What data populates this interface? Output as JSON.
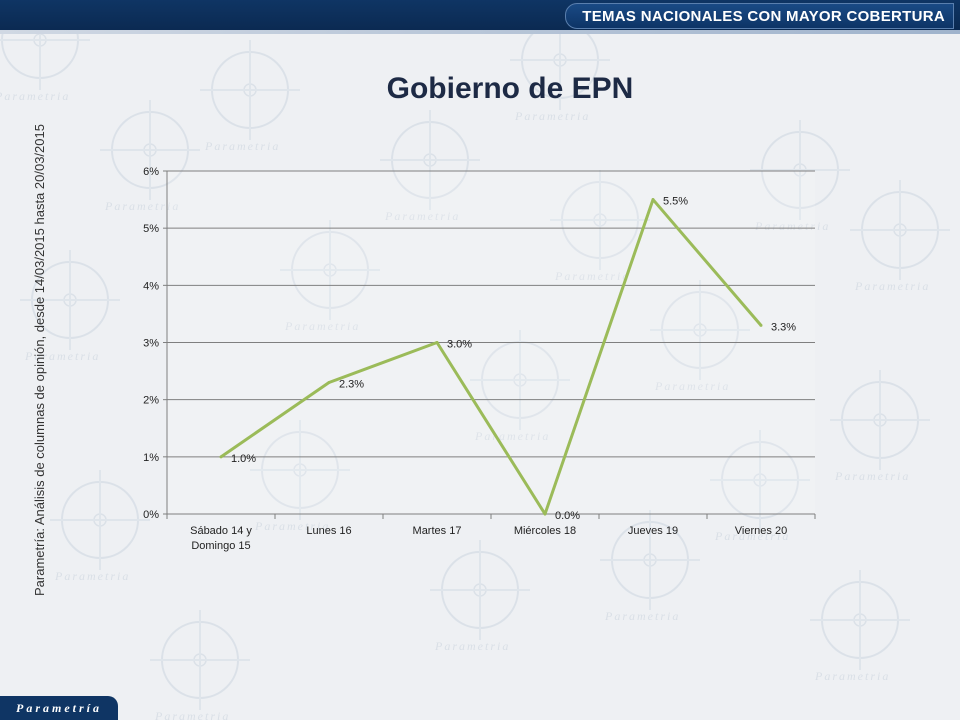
{
  "header": {
    "banner": "TEMAS NACIONALES CON MAYOR COBERTURA"
  },
  "caption": "Parametría: Análisis de columnas de opinión, desde 14/03/2015 hasta 20/03/2015",
  "logo": "Parametría",
  "watermark": "Parametria",
  "colors": {
    "line": "#9bbb59",
    "header": "#0f3564",
    "grid": "#7f7f7f"
  },
  "chart_data": {
    "type": "line",
    "title": "Gobierno de EPN",
    "categories": [
      "Sábado 14 y Domingo 15",
      "Lunes 16",
      "Martes 17",
      "Miércoles 18",
      "Jueves 19",
      "Viernes 20"
    ],
    "category_lines": [
      [
        "Sábado 14 y",
        "Domingo 15"
      ],
      [
        "Lunes 16"
      ],
      [
        "Martes 17"
      ],
      [
        "Miércoles 18"
      ],
      [
        "Jueves 19"
      ],
      [
        "Viernes 20"
      ]
    ],
    "values": [
      1.0,
      2.3,
      3.0,
      0.0,
      5.5,
      3.3
    ],
    "data_labels": [
      "1.0%",
      "2.3%",
      "3.0%",
      "0.0%",
      "5.5%",
      "3.3%"
    ],
    "y_ticks": [
      "0%",
      "1%",
      "2%",
      "3%",
      "4%",
      "5%",
      "6%"
    ],
    "ylim": [
      0,
      6
    ],
    "grid": true,
    "xlabel": "",
    "ylabel": ""
  }
}
